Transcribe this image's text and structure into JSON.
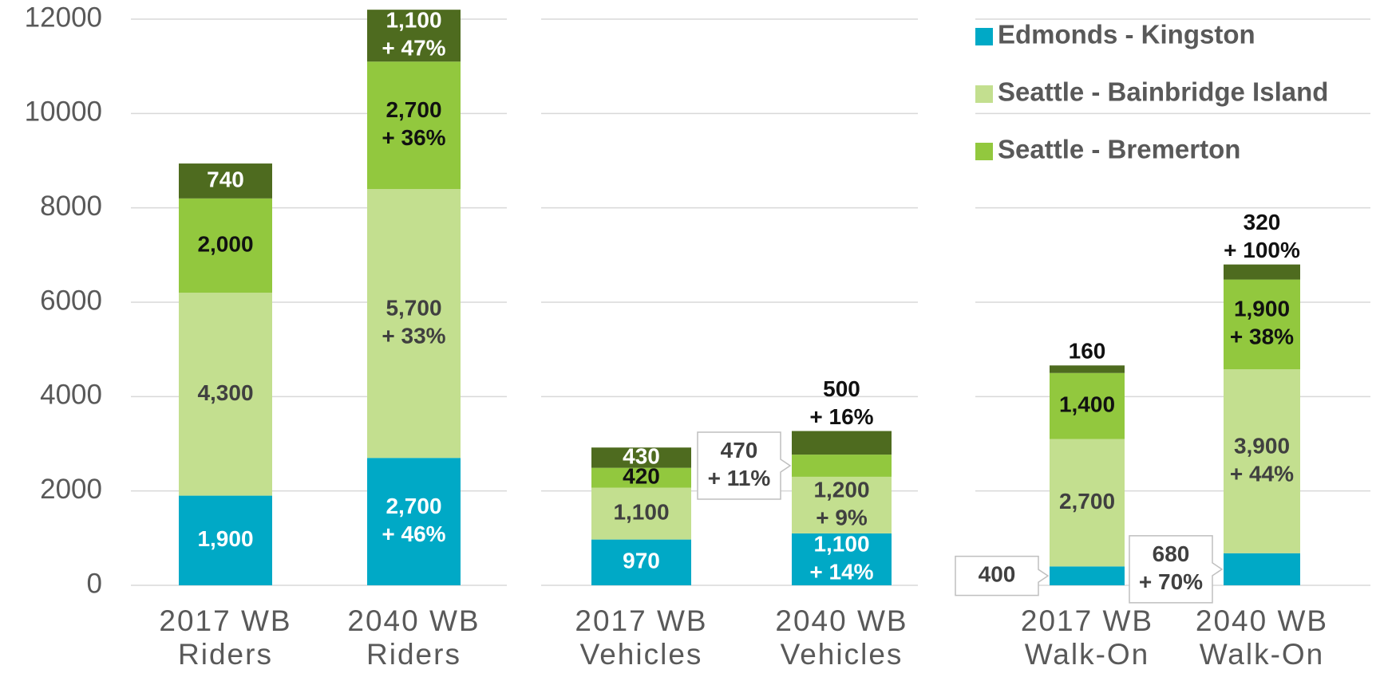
{
  "chart_data": {
    "type": "bar",
    "stacked": true,
    "categories": [
      "2017 WB Riders",
      "2040 WB Riders",
      "2017 WB Vehicles",
      "2040 WB Vehicles",
      "2017 WB Walk-On",
      "2040 WB Walk-On"
    ],
    "series": [
      {
        "name": "Edmonds - Kingston",
        "color": "#00a9c6",
        "values": [
          1900,
          2700,
          970,
          1100,
          400,
          680
        ],
        "value_labels": [
          "1,900",
          "2,700",
          "970",
          "1,100",
          "400",
          "680"
        ],
        "change_labels": [
          null,
          "+ 46%",
          null,
          "+ 14%",
          null,
          "+ 70%"
        ]
      },
      {
        "name": "Seattle - Bainbridge Island",
        "color": "#c3df8f",
        "values": [
          4300,
          5700,
          1100,
          1200,
          2700,
          3900
        ],
        "value_labels": [
          "4,300",
          "5,700",
          "1,100",
          "1,200",
          "2,700",
          "3,900"
        ],
        "change_labels": [
          null,
          "+ 33%",
          null,
          "+ 9%",
          null,
          "+ 44%"
        ]
      },
      {
        "name": "Seattle - Bremerton",
        "color": "#92c83e",
        "values": [
          2000,
          2700,
          420,
          470,
          1400,
          1900
        ],
        "value_labels": [
          "2,000",
          "2,700",
          "420",
          "470",
          "1,400",
          "1,900"
        ],
        "change_labels": [
          null,
          "+ 36%",
          null,
          "+ 11%",
          null,
          "+ 38%"
        ]
      },
      {
        "color": "#4e6b1f",
        "values": [
          740,
          1100,
          430,
          500,
          160,
          320
        ],
        "value_labels": [
          "740",
          "1,100",
          "430",
          "500",
          "160",
          "320"
        ],
        "change_labels": [
          null,
          "+ 47%",
          null,
          "+ 16%",
          null,
          "+ 100%"
        ]
      }
    ],
    "ylim": [
      0,
      12000
    ],
    "yticks": [
      0,
      2000,
      4000,
      6000,
      8000,
      10000,
      12000
    ],
    "grid": true,
    "legend": "top-right"
  }
}
